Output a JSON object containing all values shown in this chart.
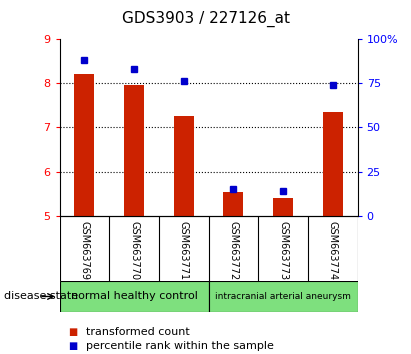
{
  "title": "GDS3903 / 227126_at",
  "samples": [
    "GSM663769",
    "GSM663770",
    "GSM663771",
    "GSM663772",
    "GSM663773",
    "GSM663774"
  ],
  "transformed_count": [
    8.2,
    7.95,
    7.25,
    5.55,
    5.4,
    7.35
  ],
  "percentile_rank": [
    88,
    83,
    76,
    15,
    14,
    74
  ],
  "bar_bottom": 5.0,
  "ylim_left": [
    5,
    9
  ],
  "ylim_right": [
    0,
    100
  ],
  "yticks_left": [
    5,
    6,
    7,
    8,
    9
  ],
  "yticks_right": [
    0,
    25,
    50,
    75,
    100
  ],
  "ytick_right_labels": [
    "0",
    "25",
    "50",
    "75",
    "100%"
  ],
  "groups": [
    {
      "label": "normal healthy control",
      "start": 0,
      "end": 2,
      "color": "#7EE07E"
    },
    {
      "label": "intracranial arterial aneurysm",
      "start": 3,
      "end": 5,
      "color": "#7EE07E"
    }
  ],
  "bar_color": "#CC2200",
  "dot_color": "#0000CC",
  "tick_bg_color": "#C0C0C0",
  "disease_state_label": "disease state",
  "legend_bar_label": "transformed count",
  "legend_dot_label": "percentile rank within the sample",
  "bar_width": 0.4
}
